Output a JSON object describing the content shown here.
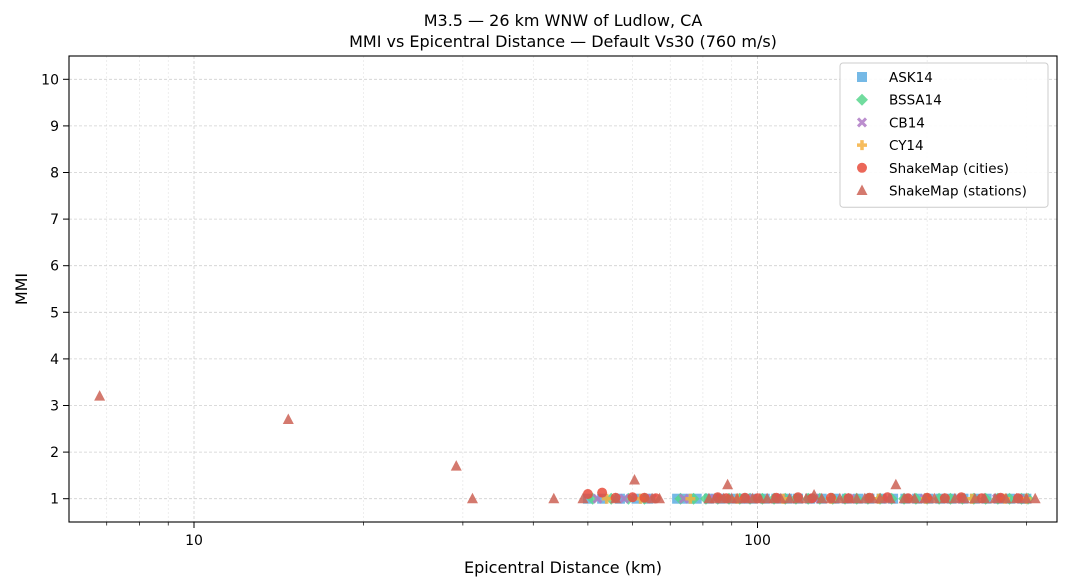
{
  "chart_data": {
    "type": "scatter",
    "title": "M3.5 — 26 km WNW of Ludlow, CA",
    "subtitle": "MMI vs Epicentral Distance — Default Vs30 (760 m/s)",
    "xlabel": "Epicentral Distance (km)",
    "ylabel": "MMI",
    "xscale": "log",
    "xlim": [
      6,
      340
    ],
    "ylim": [
      0.5,
      10.5
    ],
    "xticks": [
      {
        "value": 10,
        "label": "10"
      },
      {
        "value": 100,
        "label": "100"
      }
    ],
    "yticks": [
      1,
      2,
      3,
      4,
      5,
      6,
      7,
      8,
      9,
      10
    ],
    "grid": true,
    "legend_position": "top-right",
    "series": [
      {
        "name": "ASK14",
        "marker": "square",
        "color": "#5DADE2",
        "x": [
          50,
          53,
          57,
          61,
          64,
          72,
          75,
          78,
          82,
          86,
          90,
          94,
          98,
          103,
          108,
          113,
          118,
          124,
          130,
          137,
          144,
          151,
          158,
          166,
          174,
          183,
          192,
          201,
          211,
          221,
          232,
          243,
          255,
          268,
          281,
          295,
          300
        ],
        "y": [
          1,
          1,
          1,
          1,
          1,
          1,
          1,
          1,
          1,
          1,
          1,
          1,
          1,
          1,
          1,
          1,
          1,
          1,
          1,
          1,
          1,
          1,
          1,
          1,
          1,
          1,
          1,
          1,
          1,
          1,
          1,
          1,
          1,
          1,
          1,
          1,
          1
        ]
      },
      {
        "name": "BSSA14",
        "marker": "diamond",
        "color": "#58D68D",
        "x": [
          51,
          55,
          59,
          63,
          73,
          77,
          81,
          85,
          89,
          93,
          97,
          102,
          107,
          112,
          117,
          123,
          129,
          136,
          143,
          150,
          157,
          165,
          173,
          182,
          191,
          200,
          210,
          220,
          231,
          242,
          254,
          267,
          280,
          294,
          302
        ],
        "y": [
          1,
          1,
          1,
          1,
          1,
          1,
          1,
          1,
          1,
          1,
          1,
          1,
          1,
          1,
          1,
          1,
          1,
          1,
          1,
          1,
          1,
          1,
          1,
          1,
          1,
          1,
          1,
          1,
          1,
          1,
          1,
          1,
          1,
          1,
          1
        ]
      },
      {
        "name": "CB14",
        "marker": "x",
        "color": "#AF7AC5",
        "x": [
          52,
          58,
          65,
          74,
          84,
          96,
          110,
          126,
          146,
          170,
          198,
          230,
          266,
          298
        ],
        "y": [
          1,
          1,
          1,
          1,
          1,
          1,
          1,
          1,
          1,
          1,
          1,
          1,
          1,
          1
        ]
      },
      {
        "name": "CY14",
        "marker": "plus",
        "color": "#F5B041",
        "x": [
          54,
          62,
          76,
          92,
          111,
          135,
          164,
          199,
          240,
          275,
          300
        ],
        "y": [
          1,
          1,
          1,
          1,
          1,
          1,
          1,
          1,
          1,
          1,
          1
        ]
      },
      {
        "name": "ShakeMap (cities)",
        "marker": "circle",
        "color": "#E74C3C",
        "x": [
          50,
          53,
          56,
          60,
          63,
          66,
          85,
          88,
          95,
          100,
          108,
          118,
          125,
          135,
          145,
          158,
          170,
          185,
          200,
          215,
          230,
          250,
          270,
          290
        ],
        "y": [
          1.1,
          1.13,
          1.02,
          1.03,
          1.02,
          1.01,
          1.03,
          1.01,
          1.02,
          1.01,
          1.02,
          1.03,
          1.01,
          1.02,
          1.01,
          1.02,
          1.03,
          1.01,
          1.02,
          1.01,
          1.03,
          1.01,
          1.02,
          1.01
        ]
      },
      {
        "name": "ShakeMap (stations)",
        "marker": "triangle",
        "color": "#CD6155",
        "x": [
          6.8,
          14.7,
          29.2,
          31.2,
          43.5,
          49,
          56,
          60.5,
          65,
          67,
          82,
          84,
          87,
          88.5,
          90,
          92,
          95,
          98,
          101,
          104,
          107,
          110,
          114,
          118,
          122,
          126,
          130,
          135,
          140,
          145,
          150,
          155,
          160,
          165,
          172,
          176,
          182,
          190,
          198,
          206,
          215,
          224,
          233,
          243,
          253,
          264,
          276,
          288,
          300,
          311
        ],
        "y": [
          3.2,
          2.7,
          1.7,
          1.0,
          1.0,
          1.0,
          1.0,
          1.4,
          1.0,
          1.0,
          1.0,
          1.0,
          1.0,
          1.3,
          1.0,
          1.0,
          1.0,
          1.0,
          1.0,
          1.0,
          1.0,
          1.0,
          1.0,
          1.0,
          1.0,
          1.08,
          1.0,
          1.0,
          1.0,
          1.0,
          1.0,
          1.0,
          1.0,
          1.0,
          1.0,
          1.3,
          1.0,
          1.0,
          1.0,
          1.0,
          1.0,
          1.0,
          1.0,
          1.0,
          1.0,
          1.0,
          1.0,
          1.0,
          1.0,
          1.0
        ]
      }
    ]
  }
}
